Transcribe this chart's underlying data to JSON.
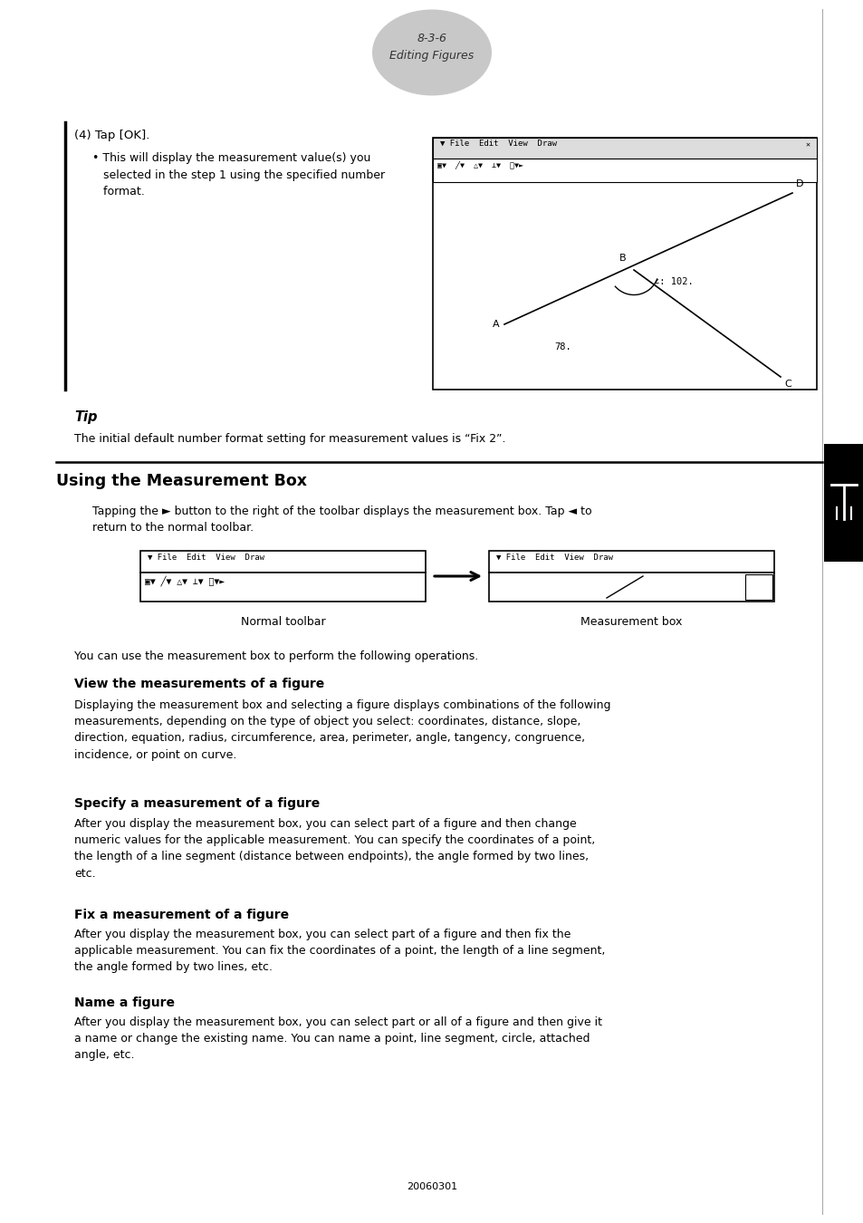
{
  "page_width": 9.54,
  "page_height": 13.5,
  "bg_color": "#ffffff",
  "header_ellipse_color": "#c8c8c8",
  "header_text_line1": "8-3-6",
  "header_text_line2": "Editing Figures",
  "section_4_title": "(4) Tap [OK].",
  "section_4_bullet": "• This will display the measurement value(s) you\n  selected in the step 1 using the specified number\n  format.",
  "tip_title": "Tip",
  "tip_body": "The initial default number format setting for measurement values is “Fix 2”.",
  "section_mbox_title": "Using the Measurement Box",
  "section_mbox_para1": "Tapping the ► button to the right of the toolbar displays the measurement box. Tap ◄ to",
  "section_mbox_para2": "return to the normal toolbar.",
  "label_normal": "Normal toolbar",
  "label_measurement": "Measurement box",
  "para_you_can": "You can use the measurement box to perform the following operations.",
  "section_view_title": "View the measurements of a figure",
  "section_view_body": "Displaying the measurement box and selecting a figure displays combinations of the following\nmeasurements, depending on the type of object you select: coordinates, distance, slope,\ndirection, equation, radius, circumference, area, perimeter, angle, tangency, congruence,\nincidence, or point on curve.",
  "section_specify_title": "Specify a measurement of a figure",
  "section_specify_body": "After you display the measurement box, you can select part of a figure and then change\nnumeric values for the applicable measurement. You can specify the coordinates of a point,\nthe length of a line segment (distance between endpoints), the angle formed by two lines,\netc.",
  "section_fix_title": "Fix a measurement of a figure",
  "section_fix_body": "After you display the measurement box, you can select part of a figure and then fix the\napplicable measurement. You can fix the coordinates of a point, the length of a line segment,\nthe angle formed by two lines, etc.",
  "section_name_title": "Name a figure",
  "section_name_body": "After you display the measurement box, you can select part or all of a figure and then give it\na name or change the existing name. You can name a point, line segment, circle, attached\nangle, etc.",
  "footer_text": "20060301"
}
